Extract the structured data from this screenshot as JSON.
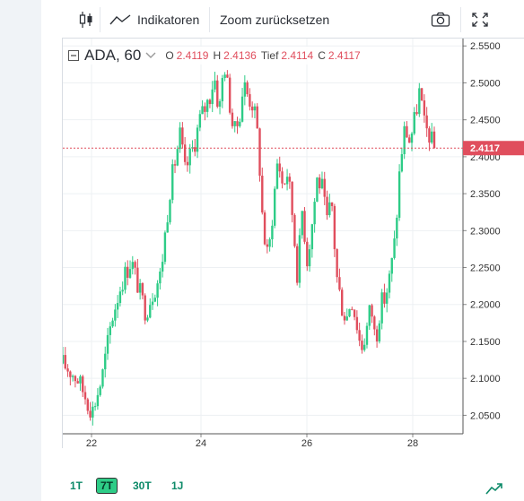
{
  "toolbar": {
    "candle_icon": "candlestick-icon",
    "indicators_label": "Indikatoren",
    "zoom_reset_label": "Zoom zurücksetzen",
    "camera_icon": "camera-icon",
    "fullscreen_icon": "fullscreen-icon"
  },
  "legend": {
    "symbol": "ADA, 60",
    "o_label": "O",
    "o_value": "2.4119",
    "h_label": "H",
    "h_value": "2.4136",
    "l_label": "Tief",
    "l_value": "2.4114",
    "c_label": "C",
    "c_value": "2.4117"
  },
  "timeframes": [
    {
      "label": "1T",
      "active": false
    },
    {
      "label": "7T",
      "active": true
    },
    {
      "label": "30T",
      "active": false
    },
    {
      "label": "1J",
      "active": false
    }
  ],
  "colors": {
    "up": "#2ecc87",
    "down": "#e04e5d",
    "grid": "#edf0f3",
    "price_line": "#e04e5d"
  },
  "chart_data": {
    "type": "candlestick",
    "title": "ADA, 60",
    "x_ticks": [
      "22",
      "24",
      "26",
      "28"
    ],
    "y_ticks": [
      "2.5500",
      "2.5000",
      "2.4500",
      "2.4000",
      "2.3500",
      "2.3000",
      "2.2500",
      "2.2000",
      "2.1500",
      "2.1000",
      "2.0500"
    ],
    "ylim": [
      2.025,
      2.56
    ],
    "last_price": 2.4117,
    "last_price_label": "2.4117",
    "grid": true,
    "close_path": [
      [
        0,
        2.12
      ],
      [
        3,
        2.1
      ],
      [
        5,
        2.07
      ],
      [
        6,
        2.055
      ],
      [
        8,
        2.1
      ],
      [
        10,
        2.18
      ],
      [
        12,
        2.23
      ],
      [
        14,
        2.26
      ],
      [
        16,
        2.21
      ],
      [
        17,
        2.19
      ],
      [
        18,
        2.21
      ],
      [
        20,
        2.24
      ],
      [
        22,
        2.36
      ],
      [
        24,
        2.43
      ],
      [
        25,
        2.38
      ],
      [
        27,
        2.42
      ],
      [
        28,
        2.45
      ],
      [
        30,
        2.48
      ],
      [
        31,
        2.51
      ],
      [
        32,
        2.46
      ],
      [
        33,
        2.53
      ],
      [
        34,
        2.48
      ],
      [
        35,
        2.43
      ],
      [
        36,
        2.45
      ],
      [
        37,
        2.5
      ],
      [
        38,
        2.48
      ],
      [
        39,
        2.47
      ],
      [
        40,
        2.42
      ],
      [
        41,
        2.3
      ],
      [
        42,
        2.26
      ],
      [
        43,
        2.33
      ],
      [
        44,
        2.4
      ],
      [
        45,
        2.36
      ],
      [
        46,
        2.38
      ],
      [
        47,
        2.32
      ],
      [
        48,
        2.24
      ],
      [
        49,
        2.33
      ],
      [
        50,
        2.26
      ],
      [
        51,
        2.31
      ],
      [
        52,
        2.37
      ],
      [
        53,
        2.36
      ],
      [
        54,
        2.31
      ],
      [
        55,
        2.34
      ],
      [
        56,
        2.24
      ],
      [
        57,
        2.2
      ],
      [
        58,
        2.18
      ],
      [
        59,
        2.21
      ],
      [
        60,
        2.18
      ],
      [
        61,
        2.14
      ],
      [
        62,
        2.16
      ],
      [
        63,
        2.2
      ],
      [
        64,
        2.15
      ],
      [
        65,
        2.2
      ],
      [
        66,
        2.21
      ],
      [
        67,
        2.24
      ],
      [
        68,
        2.29
      ],
      [
        69,
        2.39
      ],
      [
        70,
        2.44
      ],
      [
        71,
        2.42
      ],
      [
        72,
        2.45
      ],
      [
        73,
        2.49
      ],
      [
        74,
        2.44
      ],
      [
        75,
        2.43
      ],
      [
        76,
        2.41
      ]
    ]
  }
}
